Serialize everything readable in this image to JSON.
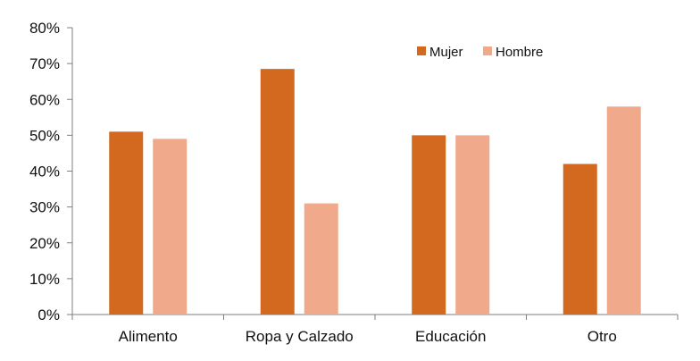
{
  "chart_data": {
    "type": "bar",
    "title": "",
    "xlabel": "",
    "ylabel": "",
    "categories": [
      "Alimento",
      "Ropa y Calzado",
      "Educación",
      "Otro"
    ],
    "series": [
      {
        "name": "Mujer",
        "color": "#D2691E",
        "values": [
          51,
          68.5,
          50,
          42
        ]
      },
      {
        "name": "Hombre",
        "color": "#F0A98A",
        "values": [
          49,
          31,
          50,
          58
        ]
      }
    ],
    "ylim": [
      0,
      80
    ],
    "yticks": [
      0,
      10,
      20,
      30,
      40,
      50,
      60,
      70,
      80
    ],
    "ytick_labels": [
      "0%",
      "10%",
      "20%",
      "30%",
      "40%",
      "50%",
      "60%",
      "70%",
      "80%"
    ],
    "grid": false,
    "legend_position": "top-right"
  }
}
